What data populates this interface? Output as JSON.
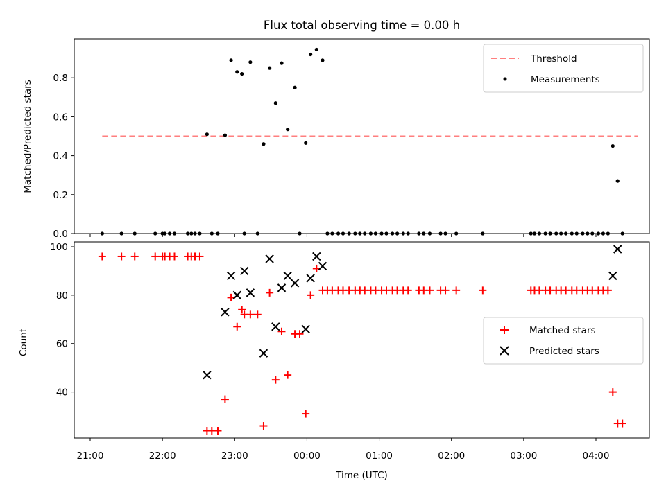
{
  "title": "Flux total observing time = 0.00 h",
  "colors": {
    "threshold": "#ff7f7f",
    "matched": "#ff0000",
    "predicted": "#000000",
    "measurements": "#000000"
  },
  "chart_data": [
    {
      "type": "scatter",
      "ylabel": "Matched/Predicted stars",
      "ylim": [
        0,
        1.0
      ],
      "yticks": [
        0.0,
        0.2,
        0.4,
        0.6,
        0.8
      ],
      "ytick_labels": [
        "0.0",
        "0.2",
        "0.4",
        "0.6",
        "0.8"
      ],
      "legend_position": "upper right",
      "threshold": {
        "name": "Threshold",
        "value": 0.5,
        "x_range": [
          "21:10",
          "04:35"
        ]
      },
      "series": [
        {
          "name": "Measurements",
          "points": [
            [
              "21:10",
              0
            ],
            [
              "21:26",
              0
            ],
            [
              "21:37",
              0
            ],
            [
              "21:54",
              0
            ],
            [
              "22:00",
              0
            ],
            [
              "22:02",
              0
            ],
            [
              "22:06",
              0
            ],
            [
              "22:10",
              0
            ],
            [
              "22:21",
              0
            ],
            [
              "22:24",
              0
            ],
            [
              "22:27",
              0
            ],
            [
              "22:31",
              0
            ],
            [
              "22:37",
              0.51
            ],
            [
              "22:41",
              0
            ],
            [
              "22:46",
              0
            ],
            [
              "22:52",
              0.505
            ],
            [
              "22:57",
              0.89
            ],
            [
              "23:02",
              0.83
            ],
            [
              "23:06",
              0.82
            ],
            [
              "23:08",
              0
            ],
            [
              "23:13",
              0.88
            ],
            [
              "23:19",
              0
            ],
            [
              "23:24",
              0.46
            ],
            [
              "23:29",
              0.85
            ],
            [
              "23:34",
              0.67
            ],
            [
              "23:39",
              0.875
            ],
            [
              "23:44",
              0.535
            ],
            [
              "23:50",
              0.75
            ],
            [
              "23:54",
              0
            ],
            [
              "23:59",
              0.465
            ],
            [
              "00:03",
              0.92
            ],
            [
              "00:08",
              0.945
            ],
            [
              "00:13",
              0.89
            ],
            [
              "00:17",
              0
            ],
            [
              "00:21",
              0
            ],
            [
              "00:26",
              0
            ],
            [
              "00:30",
              0
            ],
            [
              "00:35",
              0
            ],
            [
              "00:40",
              0
            ],
            [
              "00:44",
              0
            ],
            [
              "00:48",
              0
            ],
            [
              "00:53",
              0
            ],
            [
              "00:57",
              0
            ],
            [
              "01:02",
              0
            ],
            [
              "01:06",
              0
            ],
            [
              "01:11",
              0
            ],
            [
              "01:15",
              0
            ],
            [
              "01:20",
              0
            ],
            [
              "01:24",
              0
            ],
            [
              "01:33",
              0
            ],
            [
              "01:37",
              0
            ],
            [
              "01:42",
              0
            ],
            [
              "01:51",
              0
            ],
            [
              "01:55",
              0
            ],
            [
              "02:04",
              0
            ],
            [
              "02:26",
              0
            ],
            [
              "03:06",
              0
            ],
            [
              "03:09",
              0
            ],
            [
              "03:13",
              0
            ],
            [
              "03:18",
              0
            ],
            [
              "03:22",
              0
            ],
            [
              "03:27",
              0
            ],
            [
              "03:31",
              0
            ],
            [
              "03:35",
              0
            ],
            [
              "03:40",
              0
            ],
            [
              "03:44",
              0
            ],
            [
              "03:49",
              0
            ],
            [
              "03:53",
              0
            ],
            [
              "03:57",
              0
            ],
            [
              "04:02",
              0
            ],
            [
              "04:06",
              0
            ],
            [
              "04:10",
              0
            ],
            [
              "04:14",
              0.45
            ],
            [
              "04:18",
              0.27
            ],
            [
              "04:22",
              0
            ]
          ]
        }
      ]
    },
    {
      "type": "scatter",
      "xlabel": "Time (UTC)",
      "ylabel": "Count",
      "ylim": [
        21,
        102
      ],
      "yticks": [
        40,
        60,
        80,
        100
      ],
      "ytick_labels": [
        "40",
        "60",
        "80",
        "100"
      ],
      "xticks": [
        "21:00",
        "22:00",
        "23:00",
        "00:00",
        "01:00",
        "02:00",
        "03:00",
        "04:00"
      ],
      "legend_position": "center right",
      "series": [
        {
          "name": "Matched stars",
          "marker": "+",
          "points": [
            [
              "21:10",
              96
            ],
            [
              "21:26",
              96
            ],
            [
              "21:37",
              96
            ],
            [
              "21:54",
              96
            ],
            [
              "22:00",
              96
            ],
            [
              "22:02",
              96
            ],
            [
              "22:06",
              96
            ],
            [
              "22:10",
              96
            ],
            [
              "22:21",
              96
            ],
            [
              "22:24",
              96
            ],
            [
              "22:27",
              96
            ],
            [
              "22:31",
              96
            ],
            [
              "22:37",
              24
            ],
            [
              "22:41",
              24
            ],
            [
              "22:46",
              24
            ],
            [
              "22:52",
              37
            ],
            [
              "22:57",
              79
            ],
            [
              "23:02",
              67
            ],
            [
              "23:06",
              74
            ],
            [
              "23:08",
              72
            ],
            [
              "23:13",
              72
            ],
            [
              "23:19",
              72
            ],
            [
              "23:24",
              26
            ],
            [
              "23:29",
              81
            ],
            [
              "23:34",
              45
            ],
            [
              "23:39",
              65
            ],
            [
              "23:44",
              47
            ],
            [
              "23:50",
              64
            ],
            [
              "23:54",
              64
            ],
            [
              "23:59",
              31
            ],
            [
              "00:03",
              80
            ],
            [
              "00:08",
              91
            ],
            [
              "00:13",
              82
            ],
            [
              "00:17",
              82
            ],
            [
              "00:21",
              82
            ],
            [
              "00:26",
              82
            ],
            [
              "00:30",
              82
            ],
            [
              "00:35",
              82
            ],
            [
              "00:40",
              82
            ],
            [
              "00:44",
              82
            ],
            [
              "00:48",
              82
            ],
            [
              "00:53",
              82
            ],
            [
              "00:57",
              82
            ],
            [
              "01:02",
              82
            ],
            [
              "01:06",
              82
            ],
            [
              "01:11",
              82
            ],
            [
              "01:15",
              82
            ],
            [
              "01:20",
              82
            ],
            [
              "01:24",
              82
            ],
            [
              "01:33",
              82
            ],
            [
              "01:37",
              82
            ],
            [
              "01:42",
              82
            ],
            [
              "01:51",
              82
            ],
            [
              "01:55",
              82
            ],
            [
              "02:04",
              82
            ],
            [
              "02:26",
              82
            ],
            [
              "03:06",
              82
            ],
            [
              "03:09",
              82
            ],
            [
              "03:13",
              82
            ],
            [
              "03:18",
              82
            ],
            [
              "03:22",
              82
            ],
            [
              "03:27",
              82
            ],
            [
              "03:31",
              82
            ],
            [
              "03:35",
              82
            ],
            [
              "03:40",
              82
            ],
            [
              "03:44",
              82
            ],
            [
              "03:49",
              82
            ],
            [
              "03:53",
              82
            ],
            [
              "03:57",
              82
            ],
            [
              "04:02",
              82
            ],
            [
              "04:06",
              82
            ],
            [
              "04:10",
              82
            ],
            [
              "04:14",
              40
            ],
            [
              "04:18",
              27
            ],
            [
              "04:22",
              27
            ]
          ]
        },
        {
          "name": "Predicted stars",
          "marker": "x",
          "points": [
            [
              "22:37",
              47
            ],
            [
              "22:52",
              73
            ],
            [
              "22:57",
              88
            ],
            [
              "23:02",
              80
            ],
            [
              "23:08",
              90
            ],
            [
              "23:13",
              81
            ],
            [
              "23:24",
              56
            ],
            [
              "23:29",
              95
            ],
            [
              "23:34",
              67
            ],
            [
              "23:39",
              83
            ],
            [
              "23:44",
              88
            ],
            [
              "23:50",
              85
            ],
            [
              "23:59",
              66
            ],
            [
              "00:03",
              87
            ],
            [
              "00:08",
              96
            ],
            [
              "00:13",
              92
            ],
            [
              "04:14",
              88
            ],
            [
              "04:18",
              99
            ]
          ]
        }
      ]
    }
  ]
}
